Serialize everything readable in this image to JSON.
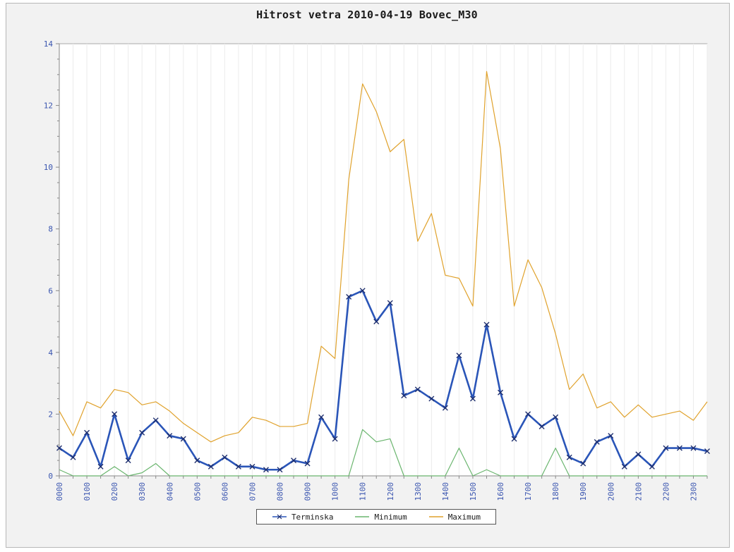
{
  "chart_data": {
    "type": "line",
    "title": "Hitrost vetra 2010-04-19 Bovec_M30",
    "xlabel": "",
    "ylabel": "",
    "ylim": [
      0,
      14
    ],
    "yticks": [
      "0",
      "2",
      "4",
      "6",
      "8",
      "10",
      "12",
      "14"
    ],
    "x": [
      "0000",
      "0030",
      "0100",
      "0130",
      "0200",
      "0230",
      "0300",
      "0330",
      "0400",
      "0430",
      "0500",
      "0530",
      "0600",
      "0630",
      "0700",
      "0730",
      "0800",
      "0830",
      "0900",
      "0930",
      "1000",
      "1030",
      "1100",
      "1130",
      "1200",
      "1230",
      "1300",
      "1330",
      "1400",
      "1430",
      "1500",
      "1530",
      "1600",
      "1630",
      "1700",
      "1730",
      "1800",
      "1830",
      "1900",
      "1930",
      "2000",
      "2030",
      "2100",
      "2130",
      "2200",
      "2230",
      "2300",
      "2330"
    ],
    "xtick_labels": [
      "0000",
      "0100",
      "0200",
      "0300",
      "0400",
      "0500",
      "0600",
      "0700",
      "0800",
      "0900",
      "1000",
      "1100",
      "1200",
      "1300",
      "1400",
      "1500",
      "1600",
      "1700",
      "1800",
      "1900",
      "2000",
      "2100",
      "2200",
      "2300"
    ],
    "legend_position": "bottom",
    "series": [
      {
        "name": "Terminska",
        "color": "#2a55b8",
        "marker": "x",
        "values": [
          0.9,
          0.6,
          1.4,
          0.3,
          2.0,
          0.5,
          1.4,
          1.8,
          1.3,
          1.2,
          0.5,
          0.3,
          0.6,
          0.3,
          0.3,
          0.2,
          0.2,
          0.5,
          0.4,
          1.9,
          1.2,
          5.8,
          6.0,
          5.0,
          5.6,
          2.6,
          2.8,
          2.5,
          2.2,
          3.9,
          2.5,
          4.9,
          2.7,
          1.2,
          2.0,
          1.6,
          1.9,
          0.6,
          0.4,
          1.1,
          1.3,
          0.3,
          0.7,
          0.3,
          0.9,
          0.9,
          0.9,
          0.8
        ]
      },
      {
        "name": "Minimum",
        "color": "#6ab56e",
        "marker": "none",
        "values": [
          0.2,
          0.0,
          0.0,
          0.0,
          0.3,
          0.0,
          0.1,
          0.4,
          0.0,
          0.0,
          0.0,
          0.0,
          0.0,
          0.0,
          0.0,
          0.0,
          0.0,
          0.0,
          0.0,
          0.0,
          0.0,
          0.0,
          1.5,
          1.1,
          1.2,
          0.0,
          0.0,
          0.0,
          0.0,
          0.9,
          0.0,
          0.2,
          0.0,
          0.0,
          0.0,
          0.0,
          0.9,
          0.0,
          0.0,
          0.0,
          0.0,
          0.0,
          0.0,
          0.0,
          0.0,
          0.0,
          0.0,
          0.0
        ]
      },
      {
        "name": "Maximum",
        "color": "#e0a22c",
        "marker": "none",
        "values": [
          2.1,
          1.3,
          2.4,
          2.2,
          2.8,
          2.7,
          2.3,
          2.4,
          2.1,
          1.7,
          1.4,
          1.1,
          1.3,
          1.4,
          1.9,
          1.8,
          1.6,
          1.6,
          1.7,
          4.2,
          3.8,
          9.6,
          12.7,
          11.8,
          10.5,
          10.9,
          7.6,
          8.5,
          6.5,
          6.4,
          5.5,
          13.1,
          10.6,
          5.5,
          7.0,
          6.1,
          4.6,
          2.8,
          3.3,
          2.2,
          2.4,
          1.9,
          2.3,
          1.9,
          2.0,
          2.1,
          1.8,
          2.4
        ]
      }
    ]
  }
}
